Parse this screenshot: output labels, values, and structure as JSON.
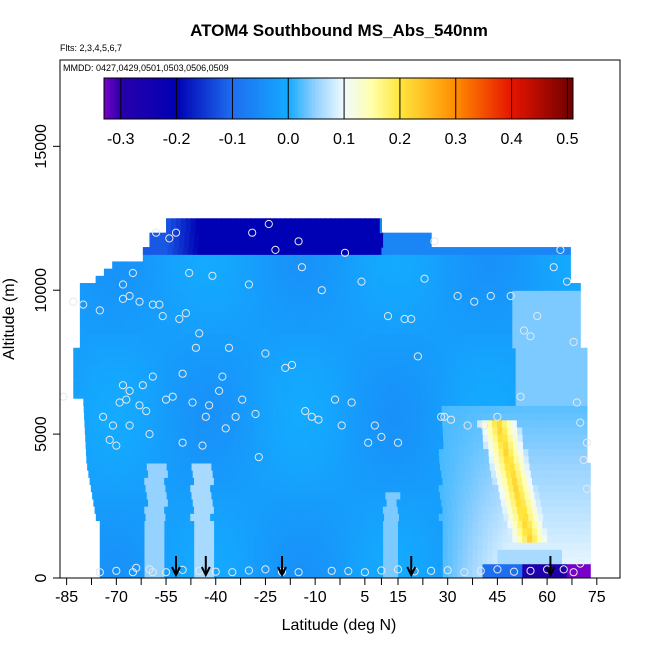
{
  "chart_data": {
    "type": "heatmap",
    "title": "ATOM4 Southbound MS_Abs_540nm",
    "subtitle_flights": "Flts: 2,3,4,5,6,7",
    "subtitle_dates": "MMDD: 0427,0429,0501,0503,0506,0509",
    "xlabel": "Latitude (deg N)",
    "ylabel": "Altitude (m)",
    "xlim": [
      -87,
      82
    ],
    "ylim": [
      0,
      18000
    ],
    "xticks": [
      -85,
      -70,
      -55,
      -40,
      -25,
      -10,
      5,
      15,
      30,
      45,
      60,
      75
    ],
    "xtick_labels": [
      "-85",
      "-70",
      "-55",
      "-40",
      "-25",
      "-10",
      "5",
      "15",
      "30",
      "45",
      "60",
      "75"
    ],
    "yticks": [
      0,
      5000,
      10000,
      15000
    ],
    "ytick_labels": [
      "0",
      "5000",
      "10000",
      "15000"
    ],
    "colorbar": {
      "ticks": [
        -0.3,
        -0.2,
        -0.1,
        0.0,
        0.1,
        0.2,
        0.3,
        0.4,
        0.5
      ],
      "tick_labels": [
        "-0.3",
        "-0.2",
        "-0.1",
        "0.0",
        "0.1",
        "0.2",
        "0.3",
        "0.4",
        "0.5"
      ],
      "range": [
        -0.33,
        0.51
      ]
    },
    "profile_arrows_lat": [
      -52,
      -43,
      -20,
      19,
      61
    ],
    "sample_points": [
      [
        -86,
        6300
      ],
      [
        -83,
        9600
      ],
      [
        -80,
        9500
      ],
      [
        -75,
        9300
      ],
      [
        -74,
        5600
      ],
      [
        -72,
        4800
      ],
      [
        -71,
        5300
      ],
      [
        -70,
        4600
      ],
      [
        -69,
        6100
      ],
      [
        -68,
        10200
      ],
      [
        -68,
        9700
      ],
      [
        -68,
        6700
      ],
      [
        -67,
        6200
      ],
      [
        -66,
        9800
      ],
      [
        -66,
        5300
      ],
      [
        -66,
        6500
      ],
      [
        -65,
        10600
      ],
      [
        -63,
        9600
      ],
      [
        -63,
        6000
      ],
      [
        -62,
        6700
      ],
      [
        -61,
        5800
      ],
      [
        -60,
        5000
      ],
      [
        -59,
        9500
      ],
      [
        -59,
        7000
      ],
      [
        -58,
        12000
      ],
      [
        -57,
        9500
      ],
      [
        -56,
        9100
      ],
      [
        -55,
        6200
      ],
      [
        -54,
        11800
      ],
      [
        -53,
        6300
      ],
      [
        -52,
        12000
      ],
      [
        -51,
        9000
      ],
      [
        -50,
        4700
      ],
      [
        -50,
        7100
      ],
      [
        -49,
        9200
      ],
      [
        -48,
        10600
      ],
      [
        -47,
        6100
      ],
      [
        -46,
        8000
      ],
      [
        -45,
        8500
      ],
      [
        -44,
        4600
      ],
      [
        -43,
        5600
      ],
      [
        -42,
        6000
      ],
      [
        -41,
        10500
      ],
      [
        -39,
        6500
      ],
      [
        -38,
        7000
      ],
      [
        -37,
        5200
      ],
      [
        -36,
        8000
      ],
      [
        -34,
        5600
      ],
      [
        -32,
        6200
      ],
      [
        -30,
        10200
      ],
      [
        -29,
        12000
      ],
      [
        -28,
        5700
      ],
      [
        -27,
        4200
      ],
      [
        -25,
        7800
      ],
      [
        -24,
        12300
      ],
      [
        -22,
        11400
      ],
      [
        -19,
        7300
      ],
      [
        -17,
        7400
      ],
      [
        -15,
        11700
      ],
      [
        -14,
        10800
      ],
      [
        -13,
        5800
      ],
      [
        -11,
        5600
      ],
      [
        -9,
        5500
      ],
      [
        -8,
        10000
      ],
      [
        -4,
        6200
      ],
      [
        -2,
        5300
      ],
      [
        -1,
        11300
      ],
      [
        1,
        6100
      ],
      [
        4,
        10300
      ],
      [
        6,
        4700
      ],
      [
        8,
        5300
      ],
      [
        10,
        4900
      ],
      [
        12,
        9100
      ],
      [
        15,
        4700
      ],
      [
        17,
        9000
      ],
      [
        19,
        9000
      ],
      [
        21,
        7700
      ],
      [
        23,
        10400
      ],
      [
        26,
        11700
      ],
      [
        28,
        5600
      ],
      [
        29,
        5600
      ],
      [
        31,
        5500
      ],
      [
        33,
        9800
      ],
      [
        36,
        5300
      ],
      [
        38,
        9600
      ],
      [
        41,
        5300
      ],
      [
        43,
        9800
      ],
      [
        45,
        5600
      ],
      [
        49,
        9800
      ],
      [
        52,
        6300
      ],
      [
        53,
        8600
      ],
      [
        55,
        8400
      ],
      [
        57,
        9100
      ],
      [
        62,
        10800
      ],
      [
        64,
        11400
      ],
      [
        66,
        10300
      ],
      [
        68,
        8200
      ],
      [
        69,
        6100
      ],
      [
        70,
        5400
      ],
      [
        71,
        4100
      ],
      [
        72,
        3100
      ],
      [
        72,
        4700
      ],
      [
        -75,
        200
      ],
      [
        -70,
        250
      ],
      [
        -65,
        200
      ],
      [
        -60,
        300
      ],
      [
        -55,
        200
      ],
      [
        -45,
        250
      ],
      [
        -35,
        200
      ],
      [
        -25,
        300
      ],
      [
        -15,
        200
      ],
      [
        -5,
        250
      ],
      [
        5,
        200
      ],
      [
        15,
        300
      ],
      [
        25,
        250
      ],
      [
        35,
        200
      ],
      [
        45,
        300
      ],
      [
        55,
        250
      ],
      [
        65,
        300
      ],
      [
        70,
        500
      ],
      [
        -64,
        350
      ],
      [
        -59,
        200
      ],
      [
        -50,
        280
      ],
      [
        -40,
        220
      ],
      [
        -30,
        260
      ],
      [
        -20,
        210
      ],
      [
        0,
        240
      ],
      [
        10,
        260
      ],
      [
        20,
        230
      ],
      [
        30,
        270
      ],
      [
        40,
        250
      ],
      [
        50,
        220
      ],
      [
        60,
        300
      ],
      [
        68,
        200
      ]
    ],
    "field_description_segments": [
      {
        "name": "upper-deep-blue-band",
        "lat_range": [
          -55,
          10
        ],
        "alt_range": [
          11500,
          12500
        ],
        "value": -0.2
      },
      {
        "name": "low-lat-enhancement",
        "lat_range": [
          45,
          60
        ],
        "alt_range": [
          1500,
          5500
        ],
        "value": 0.25
      },
      {
        "name": "surface-negative-south",
        "lat_range": [
          55,
          70
        ],
        "alt_range": [
          0,
          500
        ],
        "value": -0.3
      }
    ]
  }
}
